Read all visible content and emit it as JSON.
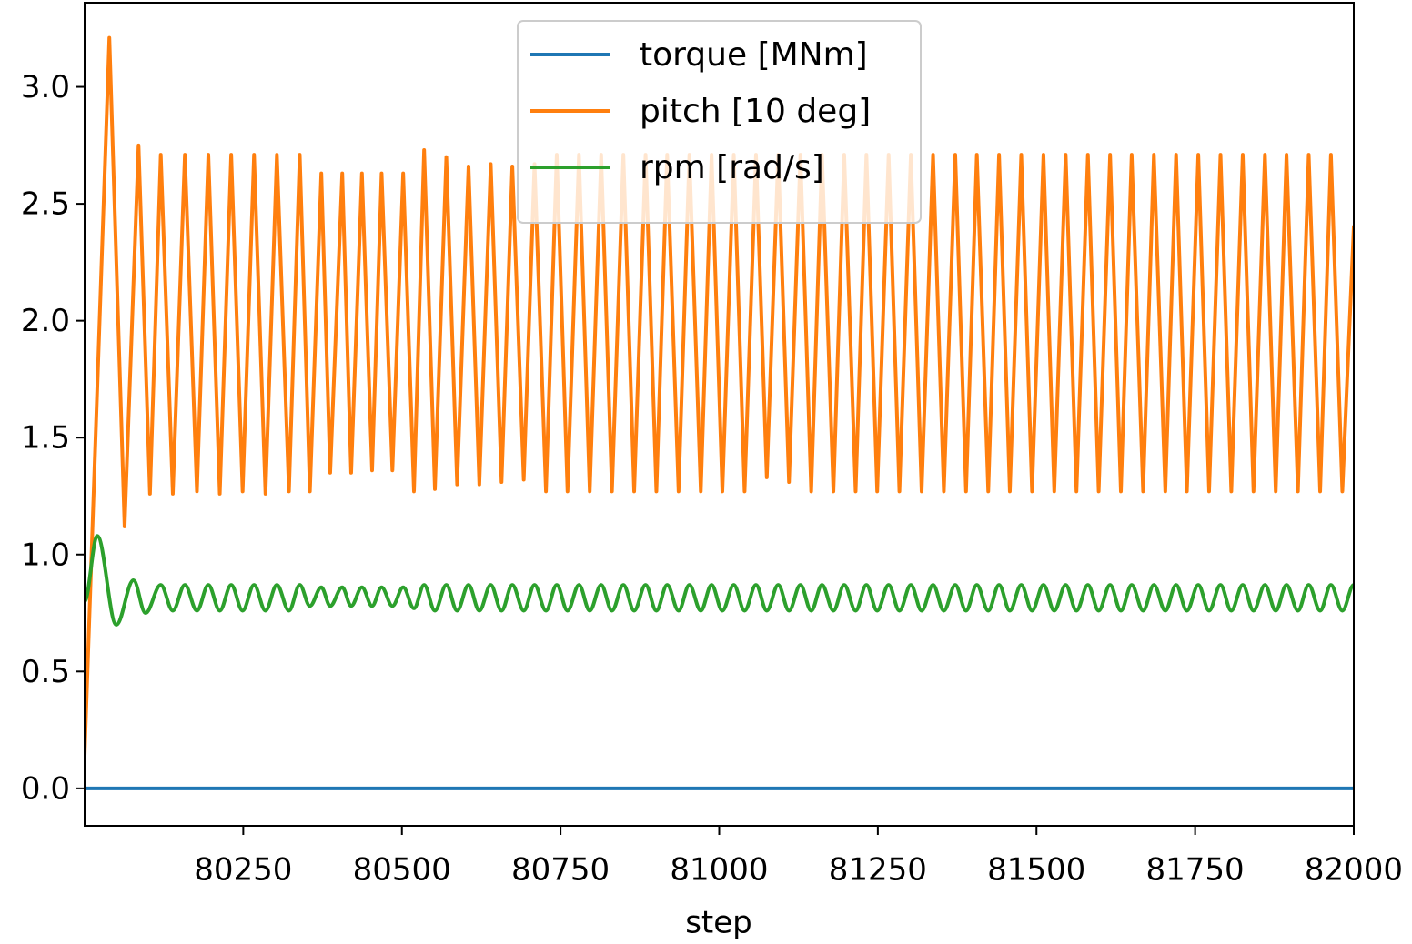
{
  "chart_data": {
    "type": "line",
    "xlabel": "step",
    "xlim": [
      80000,
      82000
    ],
    "xticks": [
      80250,
      80500,
      80750,
      81000,
      81250,
      81500,
      81750,
      82000
    ],
    "ylim": [
      -0.16,
      3.36
    ],
    "yticks": [
      {
        "value": 0,
        "label": "0.0"
      },
      0.5,
      {
        "value": 1,
        "label": "1.0"
      },
      1.5,
      {
        "value": 2,
        "label": "2.0"
      },
      2.5,
      {
        "value": 3,
        "label": "3.0"
      }
    ],
    "grid": false,
    "legend_loc": "upper center",
    "series": [
      {
        "name": "torque [MNm]",
        "color": "#1f77b4",
        "x": [
          80000,
          82000
        ],
        "values": [
          0,
          0
        ]
      },
      {
        "name": "pitch [10 deg]",
        "color": "#ff7f0e",
        "x": [
          80000,
          80039,
          80063,
          80085,
          80103,
          80120,
          80139,
          80158,
          80177,
          80195,
          80213,
          80231,
          80249,
          80267,
          80285,
          80303,
          80322,
          80339,
          80355,
          80373,
          80387,
          80406,
          80420,
          80437,
          80453,
          80468,
          80485,
          80502,
          80519,
          80535,
          80552,
          80570,
          80587,
          80605,
          80622,
          80640,
          80657,
          80674,
          80692,
          80709,
          80727,
          80744,
          80761,
          80779,
          80796,
          80814,
          80831,
          80849,
          80866,
          80884,
          80901,
          80918,
          80936,
          80953,
          80971,
          80988,
          81005,
          81023,
          81040,
          81058,
          81075,
          81093,
          81110,
          81128,
          81145,
          81162,
          81180,
          81197,
          81215,
          81232,
          81249,
          81267,
          81284,
          81302,
          81319,
          81337,
          81354,
          81372,
          81389,
          81406,
          81424,
          81441,
          81458,
          81476,
          81493,
          81511,
          81528,
          81546,
          81563,
          81581,
          81598,
          81616,
          81633,
          81650,
          81668,
          81685,
          81703,
          81720,
          81737,
          81755,
          81772,
          81790,
          81807,
          81825,
          81842,
          81860,
          81877,
          81894,
          81912,
          81929,
          81947,
          81964,
          81982,
          82000
        ],
        "values": [
          0.14,
          3.21,
          1.12,
          2.75,
          1.26,
          2.71,
          1.26,
          2.71,
          1.27,
          2.71,
          1.26,
          2.71,
          1.27,
          2.71,
          1.26,
          2.71,
          1.27,
          2.71,
          1.27,
          2.63,
          1.35,
          2.63,
          1.35,
          2.63,
          1.36,
          2.63,
          1.36,
          2.63,
          1.27,
          2.73,
          1.28,
          2.7,
          1.3,
          2.66,
          1.3,
          2.67,
          1.31,
          2.66,
          1.32,
          2.67,
          1.27,
          2.71,
          1.27,
          2.71,
          1.27,
          2.71,
          1.27,
          2.71,
          1.27,
          2.71,
          1.27,
          2.71,
          1.27,
          2.71,
          1.27,
          2.71,
          1.27,
          2.71,
          1.27,
          2.71,
          1.33,
          2.71,
          1.31,
          2.71,
          1.27,
          2.71,
          1.27,
          2.71,
          1.27,
          2.71,
          1.27,
          2.71,
          1.27,
          2.71,
          1.27,
          2.71,
          1.27,
          2.71,
          1.27,
          2.71,
          1.27,
          2.71,
          1.27,
          2.71,
          1.27,
          2.71,
          1.27,
          2.71,
          1.27,
          2.71,
          1.27,
          2.71,
          1.27,
          2.71,
          1.27,
          2.71,
          1.27,
          2.71,
          1.27,
          2.71,
          1.27,
          2.71,
          1.27,
          2.71,
          1.27,
          2.71,
          1.27,
          2.71,
          1.27,
          2.71,
          1.27,
          2.71,
          1.27,
          2.4
        ]
      },
      {
        "name": "rpm [rad/s]",
        "color": "#2ca02c",
        "interpolation": "smooth",
        "x": [
          80000,
          80020,
          80050,
          80077,
          80096,
          80120,
          80139,
          80158,
          80177,
          80195,
          80213,
          80231,
          80249,
          80267,
          80285,
          80303,
          80322,
          80339,
          80355,
          80373,
          80387,
          80406,
          80420,
          80437,
          80453,
          80468,
          80485,
          80502,
          80519,
          80535,
          80552,
          80570,
          80587,
          80605,
          80622,
          80640,
          80657,
          80674,
          80692,
          80709,
          80727,
          80744,
          80761,
          80779,
          80796,
          80814,
          80831,
          80849,
          80866,
          80884,
          80901,
          80918,
          80936,
          80953,
          80971,
          80988,
          81005,
          81023,
          81040,
          81058,
          81075,
          81093,
          81110,
          81128,
          81145,
          81162,
          81180,
          81197,
          81215,
          81232,
          81249,
          81267,
          81284,
          81302,
          81319,
          81337,
          81354,
          81372,
          81389,
          81406,
          81424,
          81441,
          81458,
          81476,
          81493,
          81511,
          81528,
          81546,
          81563,
          81581,
          81598,
          81616,
          81633,
          81650,
          81668,
          81685,
          81703,
          81720,
          81737,
          81755,
          81772,
          81790,
          81807,
          81825,
          81842,
          81860,
          81877,
          81894,
          81912,
          81929,
          81947,
          81964,
          81982,
          82000
        ],
        "values": [
          0.8,
          1.08,
          0.7,
          0.89,
          0.75,
          0.87,
          0.76,
          0.87,
          0.76,
          0.87,
          0.76,
          0.87,
          0.76,
          0.87,
          0.76,
          0.87,
          0.76,
          0.87,
          0.78,
          0.86,
          0.78,
          0.86,
          0.78,
          0.86,
          0.78,
          0.86,
          0.78,
          0.86,
          0.77,
          0.87,
          0.76,
          0.87,
          0.76,
          0.87,
          0.76,
          0.87,
          0.76,
          0.87,
          0.76,
          0.87,
          0.76,
          0.87,
          0.76,
          0.87,
          0.76,
          0.87,
          0.76,
          0.87,
          0.76,
          0.87,
          0.76,
          0.87,
          0.76,
          0.87,
          0.76,
          0.87,
          0.76,
          0.87,
          0.76,
          0.87,
          0.76,
          0.87,
          0.76,
          0.87,
          0.76,
          0.87,
          0.76,
          0.87,
          0.76,
          0.87,
          0.76,
          0.87,
          0.76,
          0.87,
          0.76,
          0.87,
          0.76,
          0.87,
          0.76,
          0.87,
          0.76,
          0.87,
          0.76,
          0.87,
          0.76,
          0.87,
          0.76,
          0.87,
          0.76,
          0.87,
          0.76,
          0.87,
          0.76,
          0.87,
          0.76,
          0.87,
          0.76,
          0.87,
          0.76,
          0.87,
          0.76,
          0.87,
          0.76,
          0.87,
          0.76,
          0.87,
          0.76,
          0.87,
          0.76,
          0.87,
          0.76,
          0.87,
          0.76,
          0.87
        ]
      }
    ]
  }
}
